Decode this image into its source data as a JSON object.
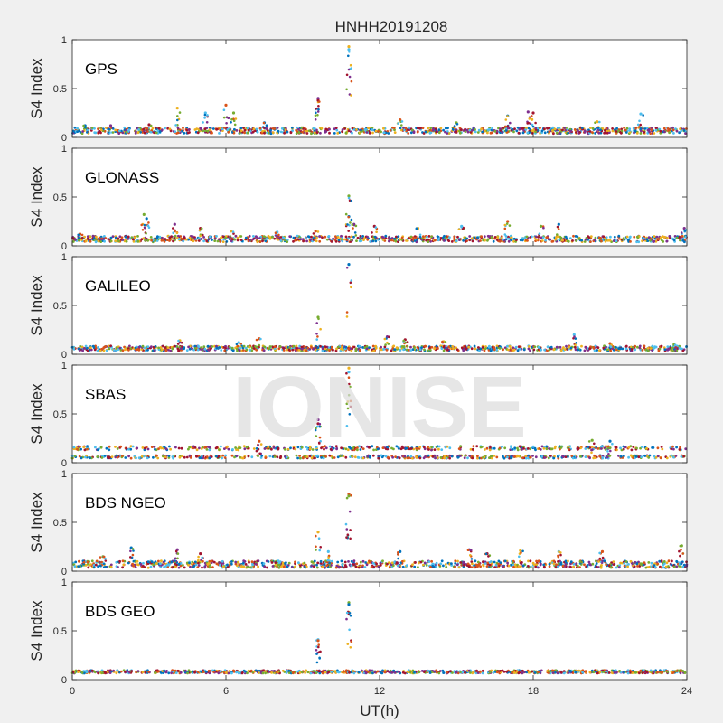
{
  "figure": {
    "title": "HNHH20191208",
    "xlabel": "UT(h)",
    "watermark": "IONISE",
    "background": "#f0f0f0"
  },
  "chart_data": {
    "type": "scatter",
    "title": "HNHH20191208",
    "xlabel": "UT(h)",
    "ylabel": "S4 Index",
    "xlim": [
      0,
      24
    ],
    "ylim": [
      0,
      1
    ],
    "xticks": [
      0,
      6,
      12,
      18,
      24
    ],
    "xtick_labels": [
      "0",
      "6",
      "12",
      "18",
      "24"
    ],
    "yticks": [
      0,
      0.5,
      1
    ],
    "ytick_labels": [
      "0",
      "0.5",
      "1"
    ],
    "grid": false,
    "series_colors": [
      "#0072bd",
      "#d95319",
      "#edb120",
      "#7e2f8e",
      "#77ac30",
      "#4dbeee",
      "#a2142f"
    ],
    "panels": [
      {
        "label": "GPS",
        "baseline": 0.07,
        "noise": 0.03,
        "activity": [
          {
            "x": 0.5,
            "y": 0.12
          },
          {
            "x": 1.5,
            "y": 0.12
          },
          {
            "x": 3.0,
            "y": 0.13
          },
          {
            "x": 4.1,
            "y": 0.3
          },
          {
            "x": 5.2,
            "y": 0.25
          },
          {
            "x": 6.0,
            "y": 0.33
          },
          {
            "x": 6.3,
            "y": 0.25
          },
          {
            "x": 7.5,
            "y": 0.15
          },
          {
            "x": 9.6,
            "y": 0.4
          },
          {
            "x": 9.6,
            "y": 0.38
          },
          {
            "x": 10.8,
            "y": 0.93
          },
          {
            "x": 10.8,
            "y": 0.9
          },
          {
            "x": 12.8,
            "y": 0.18
          },
          {
            "x": 15.0,
            "y": 0.15
          },
          {
            "x": 17.0,
            "y": 0.22
          },
          {
            "x": 17.8,
            "y": 0.26
          },
          {
            "x": 18.0,
            "y": 0.25
          },
          {
            "x": 20.5,
            "y": 0.16
          },
          {
            "x": 22.2,
            "y": 0.24
          }
        ]
      },
      {
        "label": "GLONASS",
        "baseline": 0.07,
        "noise": 0.03,
        "activity": [
          {
            "x": 0.3,
            "y": 0.12
          },
          {
            "x": 2.8,
            "y": 0.32
          },
          {
            "x": 2.9,
            "y": 0.28
          },
          {
            "x": 4.0,
            "y": 0.22
          },
          {
            "x": 5.0,
            "y": 0.18
          },
          {
            "x": 6.2,
            "y": 0.15
          },
          {
            "x": 8.0,
            "y": 0.14
          },
          {
            "x": 9.5,
            "y": 0.15
          },
          {
            "x": 10.8,
            "y": 0.51
          },
          {
            "x": 10.8,
            "y": 0.3
          },
          {
            "x": 11.0,
            "y": 0.22
          },
          {
            "x": 11.8,
            "y": 0.2
          },
          {
            "x": 13.5,
            "y": 0.18
          },
          {
            "x": 15.2,
            "y": 0.2
          },
          {
            "x": 17.0,
            "y": 0.25
          },
          {
            "x": 18.3,
            "y": 0.2
          },
          {
            "x": 19.0,
            "y": 0.22
          },
          {
            "x": 23.9,
            "y": 0.18
          }
        ]
      },
      {
        "label": "GALILEO",
        "baseline": 0.06,
        "noise": 0.025,
        "activity": [
          {
            "x": 4.2,
            "y": 0.14
          },
          {
            "x": 6.5,
            "y": 0.12
          },
          {
            "x": 7.3,
            "y": 0.16
          },
          {
            "x": 9.6,
            "y": 0.38
          },
          {
            "x": 10.8,
            "y": 0.92
          },
          {
            "x": 12.3,
            "y": 0.18
          },
          {
            "x": 13.0,
            "y": 0.15
          },
          {
            "x": 14.5,
            "y": 0.13
          },
          {
            "x": 19.6,
            "y": 0.2
          },
          {
            "x": 21.0,
            "y": 0.11
          },
          {
            "x": 23.5,
            "y": 0.1
          }
        ]
      },
      {
        "label": "SBAS",
        "baseline": 0.11,
        "noise": 0.04,
        "activity": [
          {
            "x": 9.6,
            "y": 0.44
          },
          {
            "x": 9.6,
            "y": 0.4
          },
          {
            "x": 10.8,
            "y": 0.97
          },
          {
            "x": 10.8,
            "y": 0.93
          },
          {
            "x": 7.3,
            "y": 0.22
          },
          {
            "x": 20.3,
            "y": 0.23
          },
          {
            "x": 21.0,
            "y": 0.22
          }
        ]
      },
      {
        "label": "BDS NGEO",
        "baseline": 0.07,
        "noise": 0.035,
        "activity": [
          {
            "x": 1.2,
            "y": 0.15
          },
          {
            "x": 2.3,
            "y": 0.24
          },
          {
            "x": 4.1,
            "y": 0.22
          },
          {
            "x": 5.0,
            "y": 0.18
          },
          {
            "x": 9.6,
            "y": 0.4
          },
          {
            "x": 10.0,
            "y": 0.2
          },
          {
            "x": 10.8,
            "y": 0.79
          },
          {
            "x": 10.8,
            "y": 0.77
          },
          {
            "x": 12.8,
            "y": 0.2
          },
          {
            "x": 15.5,
            "y": 0.22
          },
          {
            "x": 16.2,
            "y": 0.18
          },
          {
            "x": 17.5,
            "y": 0.21
          },
          {
            "x": 19.0,
            "y": 0.2
          },
          {
            "x": 20.7,
            "y": 0.2
          },
          {
            "x": 23.8,
            "y": 0.26
          }
        ]
      },
      {
        "label": "BDS GEO",
        "baseline": 0.08,
        "noise": 0.015,
        "activity": [
          {
            "x": 9.6,
            "y": 0.41
          },
          {
            "x": 9.6,
            "y": 0.4
          },
          {
            "x": 10.8,
            "y": 0.79
          },
          {
            "x": 10.8,
            "y": 0.77
          }
        ]
      }
    ]
  }
}
